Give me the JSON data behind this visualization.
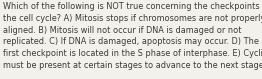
{
  "lines": [
    "Which of the following is NOT true concerning the checkpoints in",
    "the cell cycle? A) Mitosis stops if chromosomes are not properly",
    "aligned. B) Mitosis will not occur if DNA is damaged or not",
    "replicated. C) If DNA is damaged, apoptosis may occur. D) The",
    "first checkpoint is located in the S phase of interphase. E) Cyclins",
    "must be present at certain stages to advance to the next stage."
  ],
  "font_size": 5.85,
  "text_color": "#3d3a36",
  "background_color": "#f2f1ec",
  "fig_width": 2.62,
  "fig_height": 0.79,
  "dpi": 100
}
